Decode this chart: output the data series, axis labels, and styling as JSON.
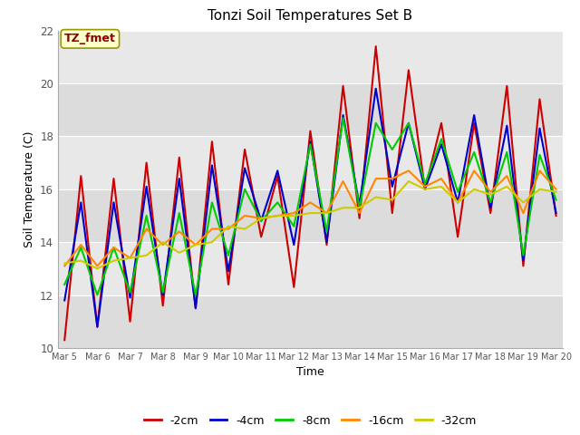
{
  "title": "Tonzi Soil Temperatures Set B",
  "xlabel": "Time",
  "ylabel": "Soil Temperature (C)",
  "ylim": [
    10,
    22
  ],
  "annotation": "TZ_fmet",
  "legend_labels": [
    "-2cm",
    "-4cm",
    "-8cm",
    "-16cm",
    "-32cm"
  ],
  "legend_colors": [
    "#cc0000",
    "#0000cc",
    "#00cc00",
    "#ff8800",
    "#cccc00"
  ],
  "x_tick_labels": [
    "Mar 5",
    "Mar 6",
    "Mar 7",
    "Mar 8",
    "Mar 9",
    "Mar 10",
    "Mar 11",
    "Mar 12",
    "Mar 13",
    "Mar 14",
    "Mar 15",
    "Mar 16",
    "Mar 17",
    "Mar 18",
    "Mar 19",
    "Mar 20"
  ],
  "background_color": "#dcdcdc",
  "band_color1": "#dcdcdc",
  "band_color2": "#e8e8e8",
  "series": {
    "neg2cm": [
      10.3,
      16.5,
      10.8,
      16.4,
      11.0,
      17.0,
      11.6,
      17.2,
      11.5,
      17.8,
      12.4,
      17.5,
      14.2,
      16.5,
      12.3,
      18.2,
      13.9,
      19.9,
      14.9,
      21.4,
      15.1,
      20.5,
      16.0,
      18.5,
      14.2,
      18.5,
      15.1,
      19.9,
      13.1,
      19.4,
      15.0
    ],
    "neg4cm": [
      11.8,
      15.5,
      10.8,
      15.5,
      11.9,
      16.1,
      12.0,
      16.4,
      11.5,
      16.9,
      12.9,
      16.8,
      14.8,
      16.7,
      13.9,
      17.8,
      14.0,
      18.8,
      15.4,
      19.8,
      16.1,
      18.5,
      16.0,
      17.7,
      15.5,
      18.8,
      15.3,
      18.4,
      13.3,
      18.3,
      15.1
    ],
    "neg8cm": [
      12.4,
      13.8,
      12.0,
      13.8,
      12.1,
      15.0,
      12.1,
      15.1,
      12.0,
      15.5,
      13.5,
      16.0,
      14.8,
      15.5,
      14.6,
      17.7,
      14.4,
      18.7,
      15.3,
      18.5,
      17.5,
      18.5,
      16.2,
      17.9,
      15.9,
      17.4,
      15.5,
      17.4,
      13.5,
      17.3,
      15.6
    ],
    "neg16cm": [
      13.1,
      13.9,
      13.1,
      13.8,
      13.4,
      14.5,
      13.9,
      14.4,
      13.9,
      14.5,
      14.5,
      15.0,
      14.9,
      15.0,
      15.1,
      15.5,
      15.1,
      16.3,
      15.1,
      16.4,
      16.4,
      16.7,
      16.1,
      16.4,
      15.5,
      16.7,
      15.9,
      16.5,
      15.1,
      16.7,
      16.0
    ],
    "neg32cm": [
      13.2,
      13.3,
      13.0,
      13.3,
      13.4,
      13.5,
      14.0,
      13.6,
      13.9,
      14.0,
      14.6,
      14.5,
      14.9,
      15.0,
      15.0,
      15.1,
      15.1,
      15.3,
      15.3,
      15.7,
      15.6,
      16.3,
      16.0,
      16.1,
      15.5,
      16.0,
      15.8,
      16.1,
      15.5,
      16.0,
      15.9
    ]
  }
}
